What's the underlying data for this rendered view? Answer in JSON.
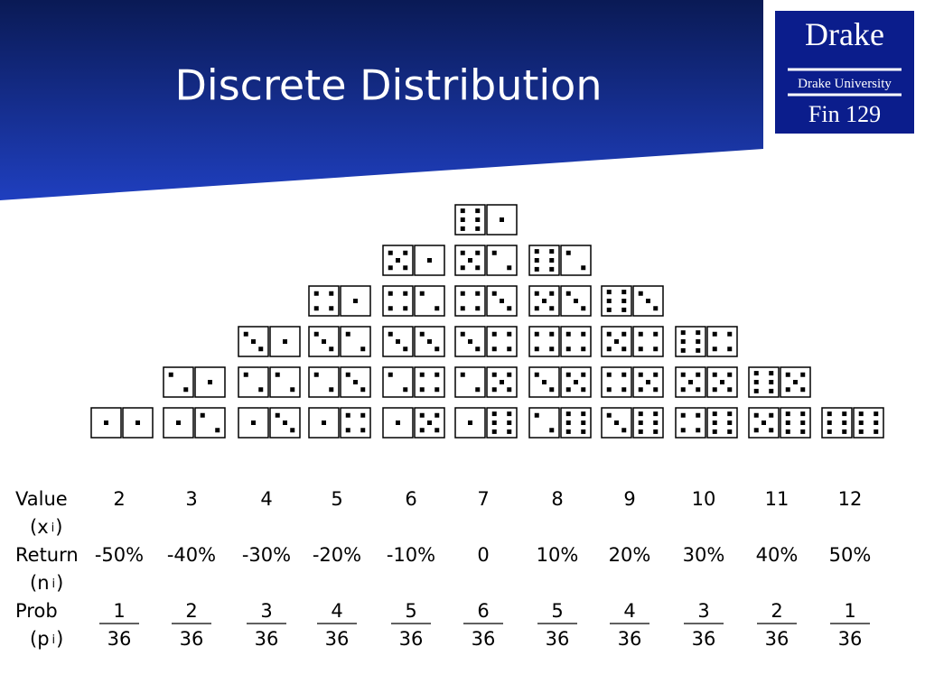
{
  "header": {
    "title": "Discrete Distribution"
  },
  "logo": {
    "name": "Drake",
    "university": "Drake University",
    "course": "Fin 129"
  },
  "dice": [
    [
      [
        1,
        1
      ]
    ],
    [
      [
        1,
        2
      ],
      [
        2,
        1
      ]
    ],
    [
      [
        1,
        3
      ],
      [
        2,
        2
      ],
      [
        3,
        1
      ]
    ],
    [
      [
        1,
        4
      ],
      [
        2,
        3
      ],
      [
        3,
        2
      ],
      [
        4,
        1
      ]
    ],
    [
      [
        1,
        5
      ],
      [
        2,
        4
      ],
      [
        3,
        3
      ],
      [
        4,
        2
      ],
      [
        5,
        1
      ]
    ],
    [
      [
        1,
        6
      ],
      [
        2,
        5
      ],
      [
        3,
        4
      ],
      [
        4,
        3
      ],
      [
        5,
        2
      ],
      [
        6,
        1
      ]
    ],
    [
      [
        2,
        6
      ],
      [
        3,
        5
      ],
      [
        4,
        4
      ],
      [
        5,
        3
      ],
      [
        6,
        2
      ]
    ],
    [
      [
        3,
        6
      ],
      [
        4,
        5
      ],
      [
        5,
        4
      ],
      [
        6,
        3
      ]
    ],
    [
      [
        4,
        6
      ],
      [
        5,
        5
      ],
      [
        6,
        4
      ]
    ],
    [
      [
        5,
        6
      ],
      [
        6,
        5
      ]
    ],
    [
      [
        6,
        6
      ]
    ]
  ],
  "table": {
    "rows": [
      {
        "label": "Value",
        "symbol_open": "(x",
        "subscript": "i",
        "symbol_close": ")",
        "cells": [
          2,
          3,
          4,
          5,
          6,
          7,
          8,
          9,
          10,
          11,
          12
        ]
      },
      {
        "label": "Return",
        "symbol_open": "(n",
        "subscript": "i",
        "symbol_close": ")",
        "cells": [
          "-50%",
          "-40%",
          "-30%",
          "-20%",
          "-10%",
          "0",
          "10%",
          "20%",
          "30%",
          "40%",
          "50%"
        ]
      },
      {
        "label": "Prob",
        "symbol_open": "(p",
        "subscript": "i",
        "symbol_close": ")",
        "numerators": [
          1,
          2,
          3,
          4,
          5,
          6,
          5,
          4,
          3,
          2,
          1
        ],
        "denominators": [
          36,
          36,
          36,
          36,
          36,
          36,
          36,
          36,
          36,
          36,
          36
        ]
      }
    ]
  }
}
